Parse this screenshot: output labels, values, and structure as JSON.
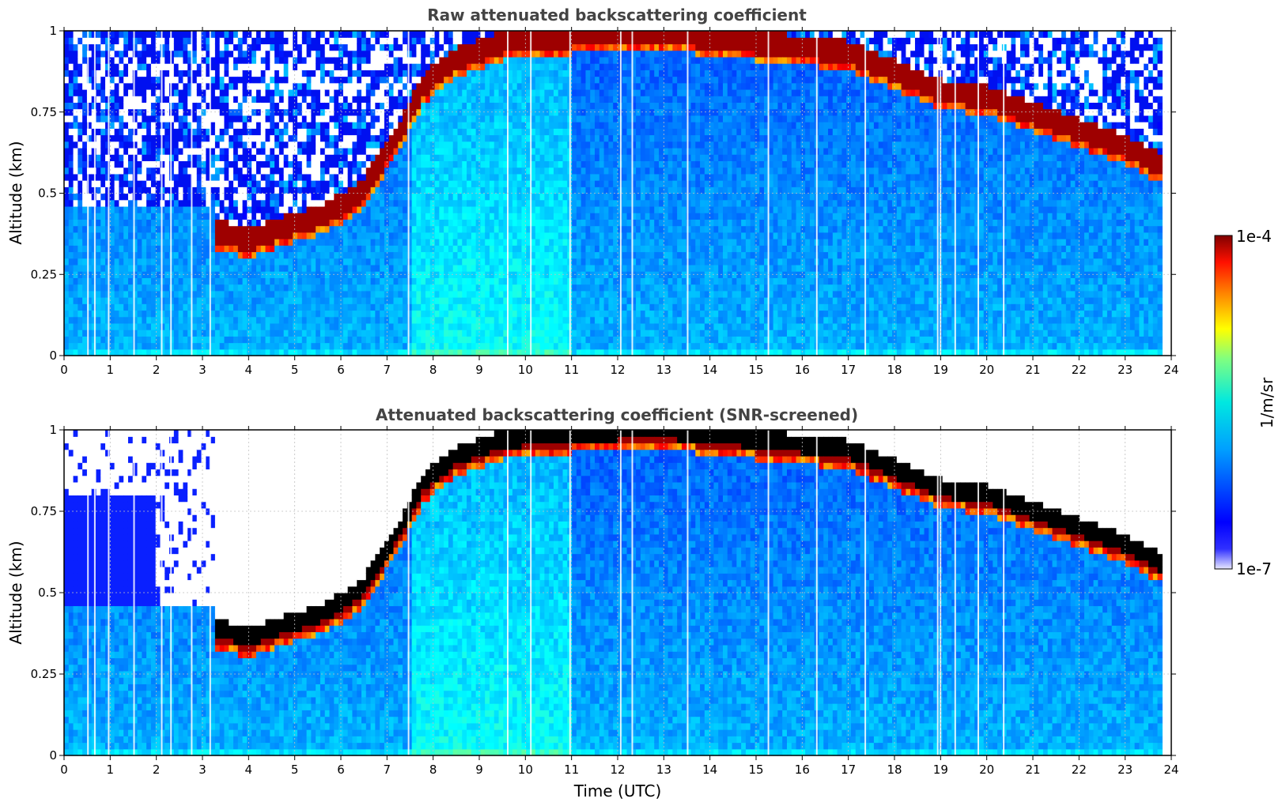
{
  "chart_data": [
    {
      "type": "heatmap",
      "title": "Raw attenuated backscattering coefficient",
      "xlabel": "",
      "ylabel": "Altitude (km)",
      "xlim": [
        0,
        24
      ],
      "ylim": [
        0,
        1
      ],
      "xticks": [
        "0",
        "1",
        "2",
        "3",
        "4",
        "5",
        "6",
        "7",
        "8",
        "9",
        "10",
        "11",
        "12",
        "13",
        "14",
        "15",
        "16",
        "17",
        "18",
        "19",
        "20",
        "21",
        "22",
        "23",
        "24"
      ],
      "yticks": [
        "0",
        "0.25",
        "0.5",
        "0.75",
        "1"
      ],
      "grid": true,
      "screened": false,
      "cloud_base_km": [
        {
          "t": 3.3,
          "z": 0.35
        },
        {
          "t": 4.0,
          "z": 0.32
        },
        {
          "t": 5.0,
          "z": 0.37
        },
        {
          "t": 5.7,
          "z": 0.4
        },
        {
          "t": 6.5,
          "z": 0.48
        },
        {
          "t": 7.3,
          "z": 0.66
        },
        {
          "t": 7.8,
          "z": 0.8
        },
        {
          "t": 8.5,
          "z": 0.88
        },
        {
          "t": 9.5,
          "z": 0.93
        },
        {
          "t": 11.0,
          "z": 0.95
        },
        {
          "t": 13.0,
          "z": 0.96
        },
        {
          "t": 15.0,
          "z": 0.93
        },
        {
          "t": 17.0,
          "z": 0.9
        },
        {
          "t": 18.0,
          "z": 0.84
        },
        {
          "t": 19.0,
          "z": 0.78
        },
        {
          "t": 20.0,
          "z": 0.76
        },
        {
          "t": 21.0,
          "z": 0.71
        },
        {
          "t": 22.0,
          "z": 0.66
        },
        {
          "t": 23.0,
          "z": 0.61
        },
        {
          "t": 23.8,
          "z": 0.55
        }
      ],
      "cloud_thickness_km": 0.07,
      "data_end_hour": 23.8
    },
    {
      "type": "heatmap",
      "title": "Attenuated backscattering coefficient (SNR-screened)",
      "xlabel": "Time (UTC)",
      "ylabel": "Altitude (km)",
      "xlim": [
        0,
        24
      ],
      "ylim": [
        0,
        1
      ],
      "xticks": [
        "0",
        "1",
        "2",
        "3",
        "4",
        "5",
        "6",
        "7",
        "8",
        "9",
        "10",
        "11",
        "12",
        "13",
        "14",
        "15",
        "16",
        "17",
        "18",
        "19",
        "20",
        "21",
        "22",
        "23",
        "24"
      ],
      "yticks": [
        "0",
        "0.25",
        "0.5",
        "0.75",
        "1"
      ],
      "grid": true,
      "screened": true,
      "data_end_hour": 23.8
    }
  ],
  "colorbar": {
    "label": "1/m/sr",
    "max_label": "1e-4",
    "min_label": "1e-7",
    "scale": "log",
    "range": [
      1e-07,
      0.0001
    ],
    "colormap": "jet"
  }
}
